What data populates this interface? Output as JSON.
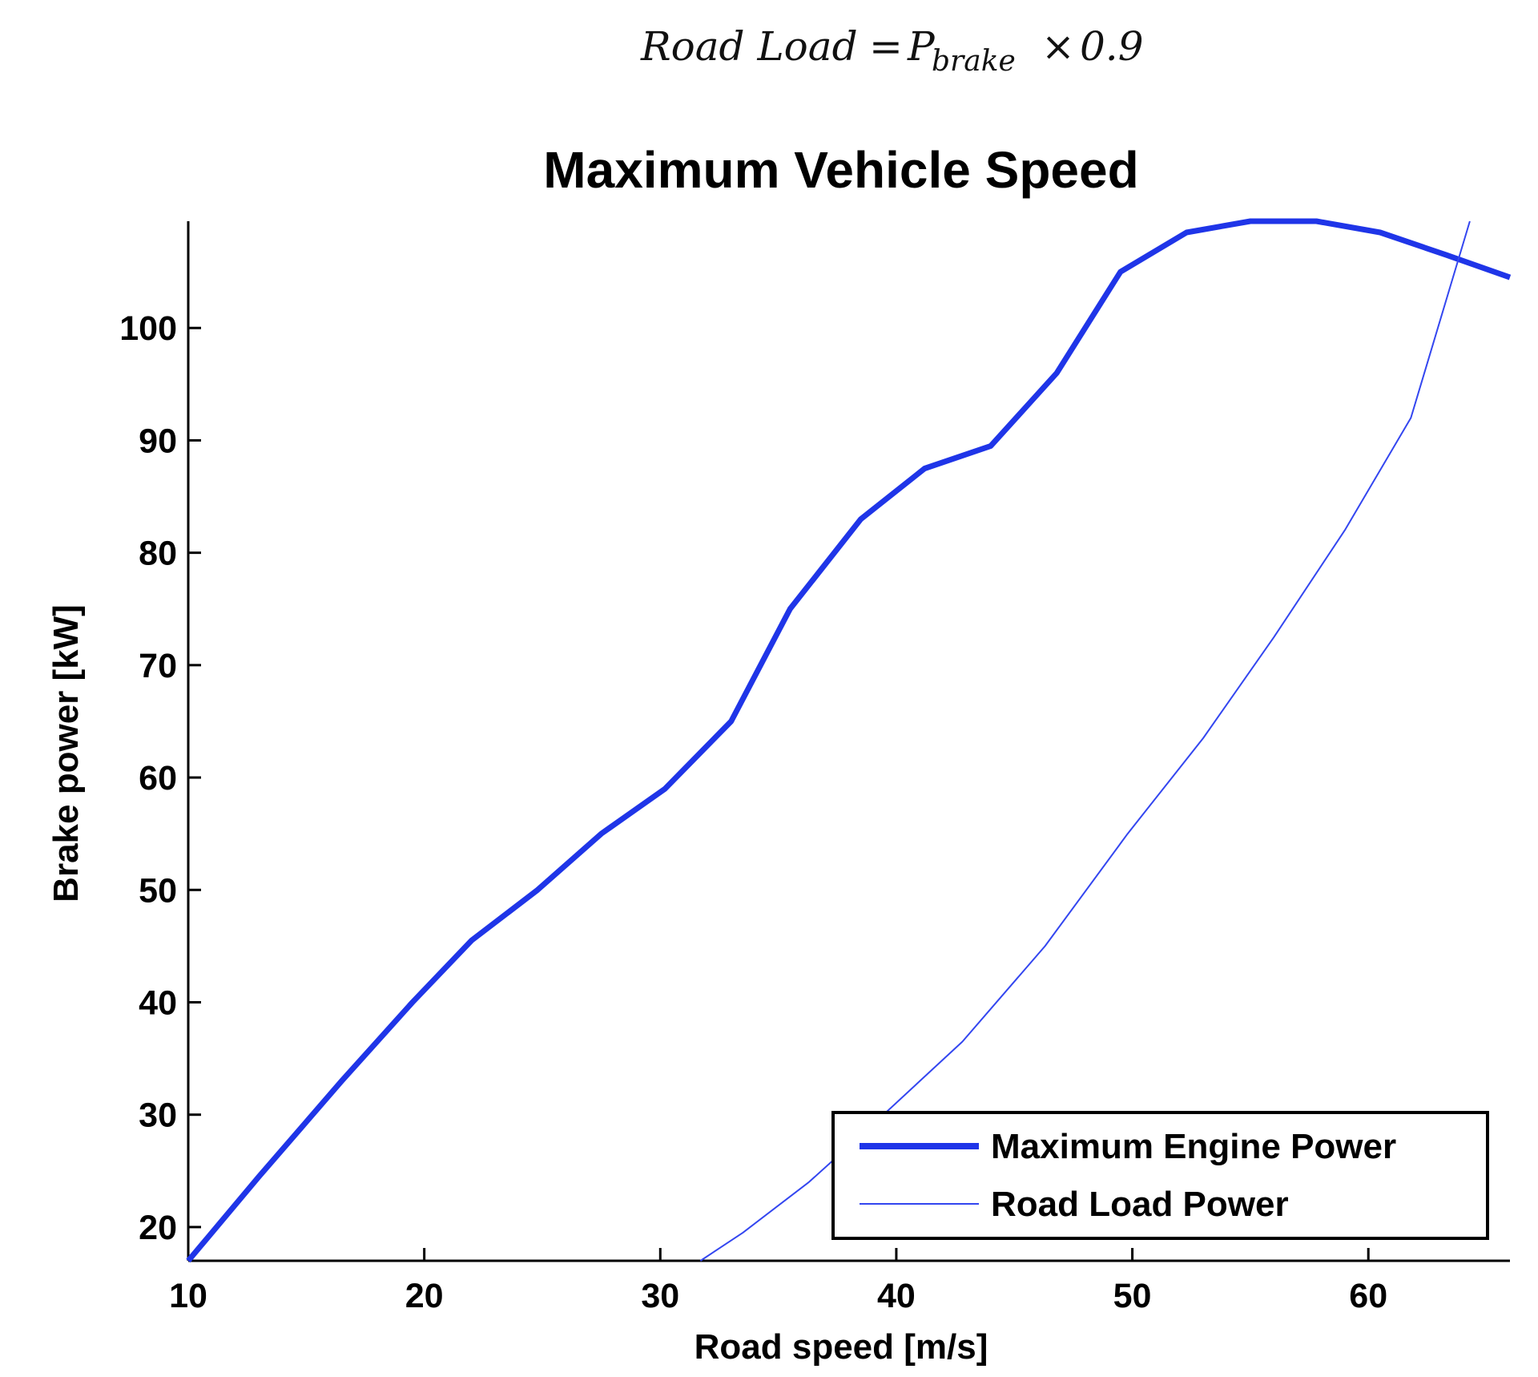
{
  "formula": {
    "lhs": "Road Load",
    "equals": "=",
    "p": "P",
    "subscript": "brake",
    "times": "×",
    "factor": "0.9"
  },
  "chart_data": {
    "type": "line",
    "title": "Maximum Vehicle Speed",
    "xlabel": "Road speed [m/s]",
    "ylabel": "Brake power [kW]",
    "xlim": [
      10,
      66
    ],
    "ylim": [
      17,
      109.5
    ],
    "xticks": [
      10,
      20,
      30,
      40,
      50,
      60
    ],
    "yticks": [
      20,
      30,
      40,
      50,
      60,
      70,
      80,
      90,
      100
    ],
    "grid": false,
    "legend_position": "bottom-right",
    "series": [
      {
        "name": "Maximum Engine Power",
        "color": "#1f35e8",
        "line": "thick",
        "x": [
          10,
          13,
          16.5,
          19.5,
          22,
          24.8,
          27.5,
          30.2,
          33,
          35.5,
          38.5,
          41.2,
          44,
          46.8,
          49.5,
          52.3,
          55,
          57.8,
          60.5,
          63.3,
          66
        ],
        "y": [
          17,
          24.5,
          33,
          40,
          45.5,
          50,
          55,
          59,
          65,
          75,
          83,
          87.5,
          89.5,
          96,
          105,
          108.5,
          109.5,
          109.5,
          108.5,
          106.5,
          104.5
        ]
      },
      {
        "name": "Road Load Power",
        "color": "#3346f0",
        "line": "thin",
        "x": [
          31.7,
          33.5,
          36.3,
          39.2,
          42.8,
          46.3,
          49.8,
          53,
          56,
          59,
          61.8,
          64.3
        ],
        "y": [
          17,
          19.5,
          24,
          29.5,
          36.5,
          45,
          55,
          63.5,
          72.5,
          82,
          92,
          109.5
        ]
      }
    ]
  }
}
